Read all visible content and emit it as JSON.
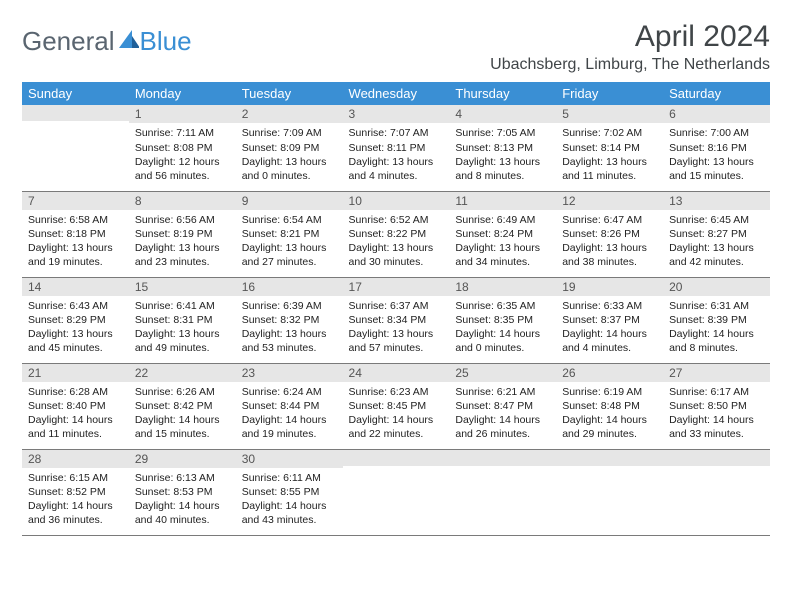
{
  "logo": {
    "text1": "General",
    "text2": "Blue"
  },
  "title": "April 2024",
  "location": "Ubachsberg, Limburg, The Netherlands",
  "dow": [
    "Sunday",
    "Monday",
    "Tuesday",
    "Wednesday",
    "Thursday",
    "Friday",
    "Saturday"
  ],
  "colors": {
    "header_bg": "#3a8fd4",
    "header_text": "#ffffff",
    "daynum_bg": "#e6e6e6",
    "border": "#7a7a7a",
    "title_color": "#404548",
    "logo_gray": "#5a6570",
    "logo_blue": "#3a8fd4"
  },
  "weeks": [
    [
      {
        "n": "",
        "lines": []
      },
      {
        "n": "1",
        "lines": [
          "Sunrise: 7:11 AM",
          "Sunset: 8:08 PM",
          "Daylight: 12 hours",
          "and 56 minutes."
        ]
      },
      {
        "n": "2",
        "lines": [
          "Sunrise: 7:09 AM",
          "Sunset: 8:09 PM",
          "Daylight: 13 hours",
          "and 0 minutes."
        ]
      },
      {
        "n": "3",
        "lines": [
          "Sunrise: 7:07 AM",
          "Sunset: 8:11 PM",
          "Daylight: 13 hours",
          "and 4 minutes."
        ]
      },
      {
        "n": "4",
        "lines": [
          "Sunrise: 7:05 AM",
          "Sunset: 8:13 PM",
          "Daylight: 13 hours",
          "and 8 minutes."
        ]
      },
      {
        "n": "5",
        "lines": [
          "Sunrise: 7:02 AM",
          "Sunset: 8:14 PM",
          "Daylight: 13 hours",
          "and 11 minutes."
        ]
      },
      {
        "n": "6",
        "lines": [
          "Sunrise: 7:00 AM",
          "Sunset: 8:16 PM",
          "Daylight: 13 hours",
          "and 15 minutes."
        ]
      }
    ],
    [
      {
        "n": "7",
        "lines": [
          "Sunrise: 6:58 AM",
          "Sunset: 8:18 PM",
          "Daylight: 13 hours",
          "and 19 minutes."
        ]
      },
      {
        "n": "8",
        "lines": [
          "Sunrise: 6:56 AM",
          "Sunset: 8:19 PM",
          "Daylight: 13 hours",
          "and 23 minutes."
        ]
      },
      {
        "n": "9",
        "lines": [
          "Sunrise: 6:54 AM",
          "Sunset: 8:21 PM",
          "Daylight: 13 hours",
          "and 27 minutes."
        ]
      },
      {
        "n": "10",
        "lines": [
          "Sunrise: 6:52 AM",
          "Sunset: 8:22 PM",
          "Daylight: 13 hours",
          "and 30 minutes."
        ]
      },
      {
        "n": "11",
        "lines": [
          "Sunrise: 6:49 AM",
          "Sunset: 8:24 PM",
          "Daylight: 13 hours",
          "and 34 minutes."
        ]
      },
      {
        "n": "12",
        "lines": [
          "Sunrise: 6:47 AM",
          "Sunset: 8:26 PM",
          "Daylight: 13 hours",
          "and 38 minutes."
        ]
      },
      {
        "n": "13",
        "lines": [
          "Sunrise: 6:45 AM",
          "Sunset: 8:27 PM",
          "Daylight: 13 hours",
          "and 42 minutes."
        ]
      }
    ],
    [
      {
        "n": "14",
        "lines": [
          "Sunrise: 6:43 AM",
          "Sunset: 8:29 PM",
          "Daylight: 13 hours",
          "and 45 minutes."
        ]
      },
      {
        "n": "15",
        "lines": [
          "Sunrise: 6:41 AM",
          "Sunset: 8:31 PM",
          "Daylight: 13 hours",
          "and 49 minutes."
        ]
      },
      {
        "n": "16",
        "lines": [
          "Sunrise: 6:39 AM",
          "Sunset: 8:32 PM",
          "Daylight: 13 hours",
          "and 53 minutes."
        ]
      },
      {
        "n": "17",
        "lines": [
          "Sunrise: 6:37 AM",
          "Sunset: 8:34 PM",
          "Daylight: 13 hours",
          "and 57 minutes."
        ]
      },
      {
        "n": "18",
        "lines": [
          "Sunrise: 6:35 AM",
          "Sunset: 8:35 PM",
          "Daylight: 14 hours",
          "and 0 minutes."
        ]
      },
      {
        "n": "19",
        "lines": [
          "Sunrise: 6:33 AM",
          "Sunset: 8:37 PM",
          "Daylight: 14 hours",
          "and 4 minutes."
        ]
      },
      {
        "n": "20",
        "lines": [
          "Sunrise: 6:31 AM",
          "Sunset: 8:39 PM",
          "Daylight: 14 hours",
          "and 8 minutes."
        ]
      }
    ],
    [
      {
        "n": "21",
        "lines": [
          "Sunrise: 6:28 AM",
          "Sunset: 8:40 PM",
          "Daylight: 14 hours",
          "and 11 minutes."
        ]
      },
      {
        "n": "22",
        "lines": [
          "Sunrise: 6:26 AM",
          "Sunset: 8:42 PM",
          "Daylight: 14 hours",
          "and 15 minutes."
        ]
      },
      {
        "n": "23",
        "lines": [
          "Sunrise: 6:24 AM",
          "Sunset: 8:44 PM",
          "Daylight: 14 hours",
          "and 19 minutes."
        ]
      },
      {
        "n": "24",
        "lines": [
          "Sunrise: 6:23 AM",
          "Sunset: 8:45 PM",
          "Daylight: 14 hours",
          "and 22 minutes."
        ]
      },
      {
        "n": "25",
        "lines": [
          "Sunrise: 6:21 AM",
          "Sunset: 8:47 PM",
          "Daylight: 14 hours",
          "and 26 minutes."
        ]
      },
      {
        "n": "26",
        "lines": [
          "Sunrise: 6:19 AM",
          "Sunset: 8:48 PM",
          "Daylight: 14 hours",
          "and 29 minutes."
        ]
      },
      {
        "n": "27",
        "lines": [
          "Sunrise: 6:17 AM",
          "Sunset: 8:50 PM",
          "Daylight: 14 hours",
          "and 33 minutes."
        ]
      }
    ],
    [
      {
        "n": "28",
        "lines": [
          "Sunrise: 6:15 AM",
          "Sunset: 8:52 PM",
          "Daylight: 14 hours",
          "and 36 minutes."
        ]
      },
      {
        "n": "29",
        "lines": [
          "Sunrise: 6:13 AM",
          "Sunset: 8:53 PM",
          "Daylight: 14 hours",
          "and 40 minutes."
        ]
      },
      {
        "n": "30",
        "lines": [
          "Sunrise: 6:11 AM",
          "Sunset: 8:55 PM",
          "Daylight: 14 hours",
          "and 43 minutes."
        ]
      },
      {
        "n": "",
        "lines": []
      },
      {
        "n": "",
        "lines": []
      },
      {
        "n": "",
        "lines": []
      },
      {
        "n": "",
        "lines": []
      }
    ]
  ]
}
